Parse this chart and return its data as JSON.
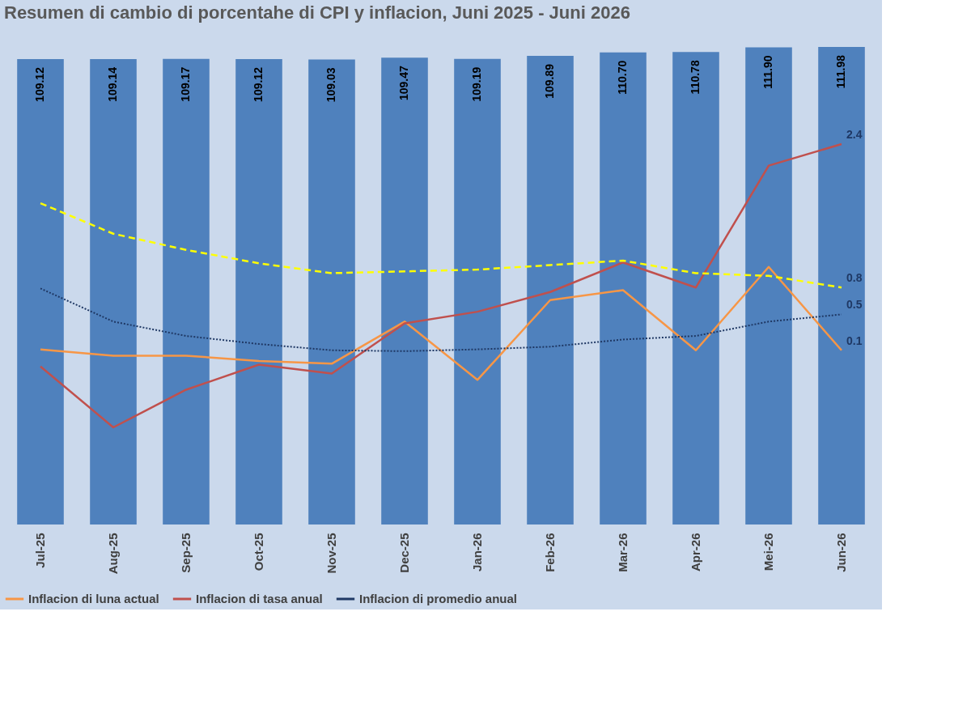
{
  "chart_data": {
    "type": "bar",
    "title": "Resumen di cambio di porcentahe di CPI y inflacion, Juni 2025 - Juni 2026",
    "categories": [
      "Jul-25",
      "Aug-25",
      "Sep-25",
      "Oct-25",
      "Nov-25",
      "Dec-25",
      "Jan-26",
      "Feb-26",
      "Mar-26",
      "Apr-26",
      "Mei-26",
      "Jun-26"
    ],
    "legend": "bottom",
    "grid": false,
    "series": [
      {
        "color": "#4f81bd",
        "values": [
          109.12,
          109.14,
          109.17,
          109.12,
          109.03,
          109.47,
          109.19,
          109.89,
          110.7,
          110.78,
          111.9,
          111.98
        ],
        "value_labels": [
          "109.12",
          "109.14",
          "109.17",
          "109.12",
          "109.03",
          "109.47",
          "109.19",
          "109.89",
          "110.70",
          "110.78",
          "111.90",
          "111.98"
        ]
      },
      {
        "type": "line",
        "axis": "y2",
        "name": "Inflacion di luna actual",
        "color": "#f79646",
        "line_style": "solid",
        "values": [
          0.11,
          0.04,
          0.04,
          -0.02,
          -0.05,
          0.42,
          -0.23,
          0.66,
          0.77,
          0.1,
          1.03,
          0.1
        ],
        "value_labels": [
          null,
          null,
          null,
          null,
          null,
          null,
          null,
          null,
          null,
          null,
          null,
          "0.1"
        ]
      },
      {
        "type": "line",
        "axis": "y2",
        "name": "Inflacion di tasa anual",
        "color": "#c0504d",
        "line_style": "solid",
        "values": [
          -0.08,
          -0.76,
          -0.34,
          -0.06,
          -0.16,
          0.4,
          0.53,
          0.75,
          1.08,
          0.8,
          2.16,
          2.4
        ],
        "value_labels": [
          null,
          null,
          null,
          null,
          null,
          null,
          null,
          null,
          null,
          null,
          null,
          "2.4"
        ]
      },
      {
        "type": "line",
        "axis": "y2",
        "name": "Inflacion di promedio anual",
        "color": "#1f3864",
        "line_style": "dotted",
        "values": [
          0.79,
          0.42,
          0.26,
          0.17,
          0.1,
          0.09,
          0.11,
          0.14,
          0.22,
          0.26,
          0.42,
          0.5
        ],
        "value_labels": [
          null,
          null,
          null,
          null,
          null,
          null,
          null,
          null,
          null,
          null,
          null,
          "0.5"
        ]
      },
      {
        "type": "line",
        "axis": "y2",
        "color": "#ffff00",
        "line_style": "dashed",
        "values": [
          1.74,
          1.4,
          1.22,
          1.07,
          0.96,
          0.98,
          1.0,
          1.05,
          1.1,
          0.96,
          0.93,
          0.8
        ],
        "value_labels": [
          null,
          null,
          null,
          null,
          null,
          null,
          null,
          null,
          null,
          null,
          null,
          "0.8"
        ]
      }
    ]
  }
}
